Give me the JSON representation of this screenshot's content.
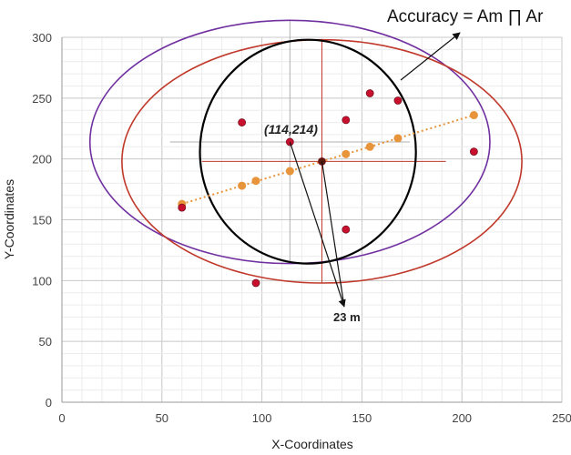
{
  "chart_data": {
    "type": "scatter",
    "title": "",
    "xlabel": "X-Coordinates",
    "ylabel": "Y-Coordinates",
    "xlim": [
      0,
      250
    ],
    "ylim": [
      0,
      300
    ],
    "xticks": [
      0,
      50,
      100,
      150,
      200,
      250
    ],
    "yticks": [
      0,
      50,
      100,
      150,
      200,
      250,
      300
    ],
    "grid": true,
    "series": [
      {
        "role": "measured",
        "color": "#c8102e",
        "points": [
          [
            60,
            160
          ],
          [
            90,
            230
          ],
          [
            97,
            98
          ],
          [
            114,
            214
          ],
          [
            142,
            232
          ],
          [
            142,
            142
          ],
          [
            154,
            254
          ],
          [
            168,
            248
          ],
          [
            206,
            206
          ],
          [
            130,
            198
          ]
        ]
      },
      {
        "role": "fitted",
        "color": "#e8943a",
        "line_style": "dotted",
        "points": [
          [
            60,
            163
          ],
          [
            90,
            178
          ],
          [
            97,
            182
          ],
          [
            114,
            190
          ],
          [
            142,
            204
          ],
          [
            154,
            210
          ],
          [
            168,
            217
          ],
          [
            206,
            236
          ]
        ]
      }
    ],
    "circles": [
      {
        "role": "purple-circle",
        "color": "#7030a0",
        "cx": 114,
        "cy": 214,
        "r": 100
      },
      {
        "role": "red-circle",
        "color": "#c0392b",
        "cx": 130,
        "cy": 198,
        "r": 100
      },
      {
        "role": "intersection",
        "color": "#000000",
        "cx": 123,
        "cy": 206,
        "rx": 54,
        "ry": 92
      }
    ],
    "crosshairs": [
      {
        "color": "#b0b0b0",
        "x": 114,
        "y": 214,
        "x_range": [
          54,
          174
        ],
        "y_range": [
          114,
          314
        ]
      },
      {
        "color": "#c0392b",
        "x": 130,
        "y": 198,
        "x_range": [
          70,
          192
        ],
        "y_range": [
          98,
          298
        ]
      }
    ],
    "annotations": {
      "accuracy_label": "Accuracy = Am ∏ Ar",
      "point_label": "(114,214)",
      "distance_label": "23 m"
    }
  }
}
